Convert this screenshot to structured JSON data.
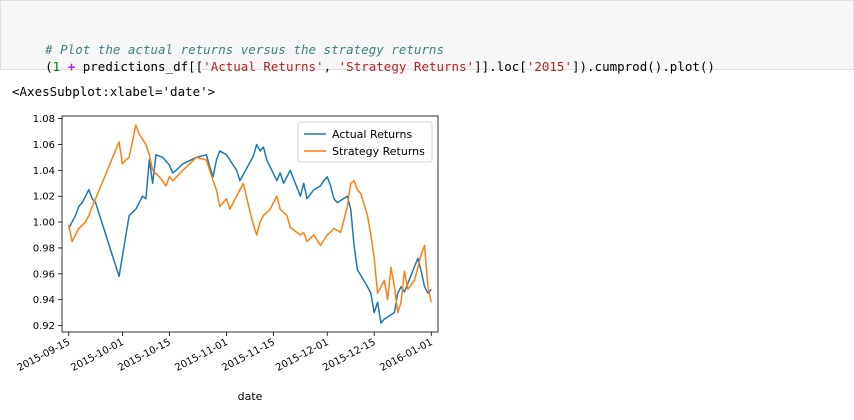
{
  "code": {
    "comment": "# Plot the actual returns versus the strategy returns",
    "line2_parts": [
      "(",
      "1",
      " ",
      "+",
      " predictions_df[[",
      "'Actual Returns'",
      ", ",
      "'Strategy Returns'",
      "]].loc[",
      "'2015'",
      "]).cumprod().plot()"
    ]
  },
  "output": {
    "repr": "<AxesSubplot:xlabel='date'>"
  },
  "chart_data": {
    "type": "line",
    "xlabel": "date",
    "ylabel": "",
    "x_type": "date",
    "xlim": [
      "2015-09-13",
      "2016-01-03"
    ],
    "ylim": [
      0.915,
      1.082
    ],
    "xticks": [
      "2015-09-15",
      "2015-10-01",
      "2015-10-15",
      "2015-11-01",
      "2015-11-15",
      "2015-12-01",
      "2015-12-15",
      "2016-01-01"
    ],
    "yticks": [
      0.92,
      0.94,
      0.96,
      0.98,
      1.0,
      1.02,
      1.04,
      1.06,
      1.08
    ],
    "ytick_labels": [
      "0.92",
      "0.94",
      "0.96",
      "0.98",
      "1.00",
      "1.02",
      "1.04",
      "1.06",
      "1.08"
    ],
    "legend_position": "top-right",
    "series": [
      {
        "name": "Actual Returns",
        "color": "#1f77b4",
        "points": [
          [
            "2015-09-15",
            0.995
          ],
          [
            "2015-09-16",
            1.0
          ],
          [
            "2015-09-17",
            1.005
          ],
          [
            "2015-09-18",
            1.012
          ],
          [
            "2015-09-19",
            1.015
          ],
          [
            "2015-09-20",
            1.02
          ],
          [
            "2015-09-21",
            1.025
          ],
          [
            "2015-09-22",
            1.018
          ],
          [
            "2015-09-23",
            1.015
          ],
          [
            "2015-09-30",
            0.958
          ],
          [
            "2015-10-03",
            1.005
          ],
          [
            "2015-10-05",
            1.01
          ],
          [
            "2015-10-07",
            1.02
          ],
          [
            "2015-10-08",
            1.018
          ],
          [
            "2015-10-09",
            1.048
          ],
          [
            "2015-10-10",
            1.03
          ],
          [
            "2015-10-11",
            1.052
          ],
          [
            "2015-10-13",
            1.05
          ],
          [
            "2015-10-15",
            1.044
          ],
          [
            "2015-10-16",
            1.038
          ],
          [
            "2015-10-17",
            1.04
          ],
          [
            "2015-10-19",
            1.045
          ],
          [
            "2015-10-23",
            1.05
          ],
          [
            "2015-10-26",
            1.052
          ],
          [
            "2015-10-27",
            1.043
          ],
          [
            "2015-10-28",
            1.035
          ],
          [
            "2015-10-29",
            1.048
          ],
          [
            "2015-10-30",
            1.055
          ],
          [
            "2015-11-01",
            1.052
          ],
          [
            "2015-11-03",
            1.044
          ],
          [
            "2015-11-04",
            1.04
          ],
          [
            "2015-11-05",
            1.032
          ],
          [
            "2015-11-09",
            1.051
          ],
          [
            "2015-11-10",
            1.06
          ],
          [
            "2015-11-11",
            1.055
          ],
          [
            "2015-11-12",
            1.058
          ],
          [
            "2015-11-13",
            1.048
          ],
          [
            "2015-11-16",
            1.032
          ],
          [
            "2015-11-17",
            1.038
          ],
          [
            "2015-11-18",
            1.03
          ],
          [
            "2015-11-20",
            1.04
          ],
          [
            "2015-11-23",
            1.02
          ],
          [
            "2015-11-24",
            1.03
          ],
          [
            "2015-11-25",
            1.018
          ],
          [
            "2015-11-27",
            1.025
          ],
          [
            "2015-11-29",
            1.028
          ],
          [
            "2015-11-30",
            1.032
          ],
          [
            "2015-12-01",
            1.035
          ],
          [
            "2015-12-02",
            1.028
          ],
          [
            "2015-12-03",
            1.018
          ],
          [
            "2015-12-04",
            1.015
          ],
          [
            "2015-12-07",
            1.02
          ],
          [
            "2015-12-08",
            1.01
          ],
          [
            "2015-12-09",
            0.982
          ],
          [
            "2015-12-10",
            0.963
          ],
          [
            "2015-12-13",
            0.95
          ],
          [
            "2015-12-14",
            0.945
          ],
          [
            "2015-12-15",
            0.93
          ],
          [
            "2015-12-16",
            0.938
          ],
          [
            "2015-12-17",
            0.922
          ],
          [
            "2015-12-18",
            0.925
          ],
          [
            "2015-12-21",
            0.93
          ],
          [
            "2015-12-22",
            0.945
          ],
          [
            "2015-12-23",
            0.95
          ],
          [
            "2015-12-24",
            0.946
          ],
          [
            "2015-12-28",
            0.972
          ],
          [
            "2015-12-29",
            0.962
          ],
          [
            "2015-12-30",
            0.95
          ],
          [
            "2015-12-31",
            0.945
          ],
          [
            "2016-01-01",
            0.948
          ]
        ]
      },
      {
        "name": "Strategy Returns",
        "color": "#ff7f0e",
        "points": [
          [
            "2015-09-15",
            0.998
          ],
          [
            "2015-09-16",
            0.985
          ],
          [
            "2015-09-17",
            0.99
          ],
          [
            "2015-09-18",
            0.995
          ],
          [
            "2015-09-20",
            1.0
          ],
          [
            "2015-09-21",
            1.005
          ],
          [
            "2015-09-22",
            1.012
          ],
          [
            "2015-09-23",
            1.018
          ],
          [
            "2015-09-30",
            1.062
          ],
          [
            "2015-10-01",
            1.045
          ],
          [
            "2015-10-02",
            1.048
          ],
          [
            "2015-10-03",
            1.05
          ],
          [
            "2015-10-05",
            1.075
          ],
          [
            "2015-10-06",
            1.068
          ],
          [
            "2015-10-07",
            1.064
          ],
          [
            "2015-10-08",
            1.06
          ],
          [
            "2015-10-09",
            1.052
          ],
          [
            "2015-10-10",
            1.04
          ],
          [
            "2015-10-12",
            1.035
          ],
          [
            "2015-10-14",
            1.028
          ],
          [
            "2015-10-15",
            1.035
          ],
          [
            "2015-10-16",
            1.032
          ],
          [
            "2015-10-19",
            1.04
          ],
          [
            "2015-10-23",
            1.05
          ],
          [
            "2015-10-26",
            1.048
          ],
          [
            "2015-10-27",
            1.04
          ],
          [
            "2015-10-28",
            1.032
          ],
          [
            "2015-10-29",
            1.025
          ],
          [
            "2015-10-30",
            1.012
          ],
          [
            "2015-11-01",
            1.018
          ],
          [
            "2015-11-02",
            1.01
          ],
          [
            "2015-11-04",
            1.02
          ],
          [
            "2015-11-05",
            1.025
          ],
          [
            "2015-11-06",
            1.03
          ],
          [
            "2015-11-08",
            1.008
          ],
          [
            "2015-11-09",
            0.998
          ],
          [
            "2015-11-10",
            0.99
          ],
          [
            "2015-11-11",
            1.0
          ],
          [
            "2015-11-12",
            1.005
          ],
          [
            "2015-11-14",
            1.01
          ],
          [
            "2015-11-16",
            1.02
          ],
          [
            "2015-11-17",
            1.01
          ],
          [
            "2015-11-19",
            1.005
          ],
          [
            "2015-11-20",
            0.996
          ],
          [
            "2015-11-23",
            0.99
          ],
          [
            "2015-11-24",
            0.992
          ],
          [
            "2015-11-25",
            0.985
          ],
          [
            "2015-11-27",
            0.99
          ],
          [
            "2015-11-29",
            0.982
          ],
          [
            "2015-12-01",
            0.99
          ],
          [
            "2015-12-03",
            0.995
          ],
          [
            "2015-12-05",
            0.992
          ],
          [
            "2015-12-07",
            1.012
          ],
          [
            "2015-12-08",
            1.03
          ],
          [
            "2015-12-09",
            1.032
          ],
          [
            "2015-12-10",
            1.025
          ],
          [
            "2015-12-11",
            1.022
          ],
          [
            "2015-12-13",
            1.005
          ],
          [
            "2015-12-14",
            0.99
          ],
          [
            "2015-12-15",
            0.972
          ],
          [
            "2015-12-16",
            0.945
          ],
          [
            "2015-12-17",
            0.95
          ],
          [
            "2015-12-18",
            0.955
          ],
          [
            "2015-12-19",
            0.94
          ],
          [
            "2015-12-20",
            0.965
          ],
          [
            "2015-12-21",
            0.95
          ],
          [
            "2015-12-22",
            0.93
          ],
          [
            "2015-12-23",
            0.938
          ],
          [
            "2015-12-24",
            0.962
          ],
          [
            "2015-12-25",
            0.948
          ],
          [
            "2015-12-27",
            0.955
          ],
          [
            "2015-12-28",
            0.965
          ],
          [
            "2015-12-29",
            0.975
          ],
          [
            "2015-12-30",
            0.982
          ],
          [
            "2015-12-31",
            0.95
          ],
          [
            "2016-01-01",
            0.938
          ]
        ]
      }
    ]
  }
}
